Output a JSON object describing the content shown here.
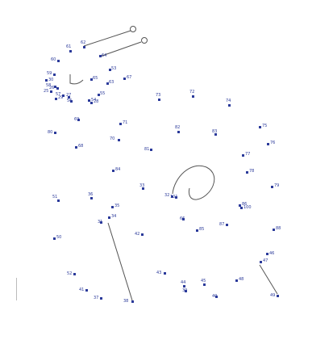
{
  "puzzle": {
    "type": "connect-the-dots",
    "ink_color": "#2b3a9a",
    "line_color": "#555555",
    "points": [
      {
        "label": "61"
      },
      {
        "label": "62"
      },
      {
        "label": "60"
      },
      {
        "label": "59"
      },
      {
        "label": "58"
      },
      {
        "label": "57"
      },
      {
        "label": "56"
      },
      {
        "label": "64"
      },
      {
        "label": "55"
      },
      {
        "label": "54"
      },
      {
        "label": "53"
      },
      {
        "label": "63"
      },
      {
        "label": "67"
      },
      {
        "label": "65"
      },
      {
        "label": "73"
      },
      {
        "label": "72"
      },
      {
        "label": "74"
      },
      {
        "label": "75"
      },
      {
        "label": "76"
      },
      {
        "label": "77"
      },
      {
        "label": "78"
      },
      {
        "label": "71"
      },
      {
        "label": "70"
      },
      {
        "label": "69"
      },
      {
        "label": "68"
      },
      {
        "label": "80"
      },
      {
        "label": "81"
      },
      {
        "label": "82"
      },
      {
        "label": "83"
      },
      {
        "label": "84"
      },
      {
        "label": "79"
      },
      {
        "label": "86"
      },
      {
        "label": "87"
      },
      {
        "label": "88"
      },
      {
        "label": "85"
      },
      {
        "label": "66"
      },
      {
        "label": "36"
      },
      {
        "label": "35"
      },
      {
        "label": "34"
      },
      {
        "label": "31"
      },
      {
        "label": "33"
      },
      {
        "label": "32"
      },
      {
        "label": "42"
      },
      {
        "label": "43"
      },
      {
        "label": "44"
      },
      {
        "label": "45"
      },
      {
        "label": "48"
      },
      {
        "label": "47"
      },
      {
        "label": "46"
      },
      {
        "label": "49"
      },
      {
        "label": "40"
      },
      {
        "label": "39"
      },
      {
        "label": "38"
      },
      {
        "label": "37"
      },
      {
        "label": "41"
      },
      {
        "label": "52"
      },
      {
        "label": "51"
      },
      {
        "label": "50"
      },
      {
        "label": "30"
      },
      {
        "label": "29"
      },
      {
        "label": "28"
      },
      {
        "label": "27"
      },
      {
        "label": "26"
      },
      {
        "label": "25"
      },
      {
        "label": "101"
      },
      {
        "label": "100"
      }
    ]
  }
}
